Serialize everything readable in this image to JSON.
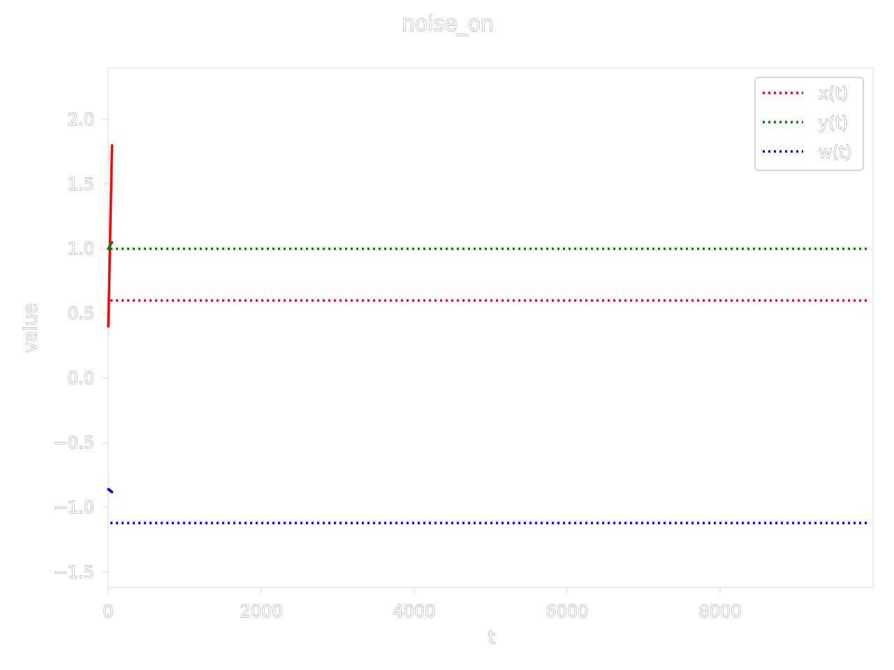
{
  "chart_data": {
    "type": "line",
    "title": "noise_on",
    "xlabel": "t",
    "ylabel": "value",
    "xlim": [
      0,
      10000
    ],
    "ylim": [
      -1.62,
      2.4
    ],
    "xticks": [
      0,
      2000,
      4000,
      6000,
      8000
    ],
    "xtick_labels": [
      "0",
      "2000",
      "4000",
      "6000",
      "8000"
    ],
    "yticks": [
      -1.5,
      -1.0,
      -0.5,
      0.0,
      0.5,
      1.0,
      1.5,
      2.0
    ],
    "ytick_labels": [
      "−1.5",
      "−1.0",
      "−0.5",
      "0.0",
      "0.5",
      "1.0",
      "1.5",
      "2.0"
    ],
    "grid": false,
    "legend_position": "top-right",
    "series": [
      {
        "name": "x(t)",
        "color": "#ff0000",
        "x": [
          0,
          10,
          20,
          30,
          40,
          50
        ],
        "y": [
          0.4,
          0.65,
          0.95,
          1.25,
          1.55,
          1.8
        ],
        "steady_state": 0.6
      },
      {
        "name": "y(t)",
        "color": "#008000",
        "x": [
          0,
          10,
          20,
          30,
          40,
          50
        ],
        "y": [
          1.0,
          1.01,
          1.02,
          1.03,
          1.04,
          1.05
        ],
        "steady_state": 1.0
      },
      {
        "name": "w(t)",
        "color": "#0000ff",
        "x": [
          0,
          10,
          20,
          30,
          40,
          50
        ],
        "y": [
          -0.86,
          -0.86,
          -0.87,
          -0.87,
          -0.88,
          -0.88
        ],
        "steady_state": -1.12
      }
    ]
  }
}
